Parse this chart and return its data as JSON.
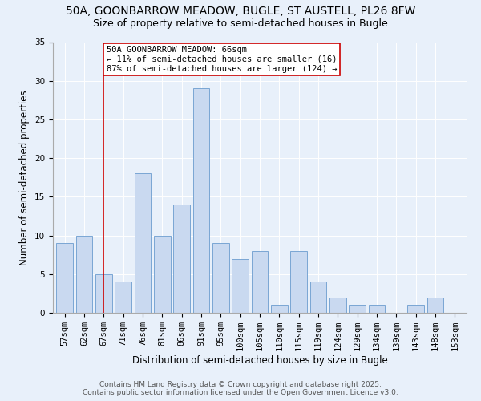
{
  "title": "50A, GOONBARROW MEADOW, BUGLE, ST AUSTELL, PL26 8FW",
  "subtitle": "Size of property relative to semi-detached houses in Bugle",
  "xlabel": "Distribution of semi-detached houses by size in Bugle",
  "ylabel": "Number of semi-detached properties",
  "categories": [
    "57sqm",
    "62sqm",
    "67sqm",
    "71sqm",
    "76sqm",
    "81sqm",
    "86sqm",
    "91sqm",
    "95sqm",
    "100sqm",
    "105sqm",
    "110sqm",
    "115sqm",
    "119sqm",
    "124sqm",
    "129sqm",
    "134sqm",
    "139sqm",
    "143sqm",
    "148sqm",
    "153sqm"
  ],
  "values": [
    9,
    10,
    5,
    4,
    18,
    10,
    14,
    29,
    9,
    7,
    8,
    1,
    8,
    4,
    2,
    1,
    1,
    0,
    1,
    2,
    0
  ],
  "bar_color": "#c9d9f0",
  "bar_edge_color": "#7aa6d4",
  "vline_x": 2,
  "vline_color": "#cc0000",
  "annotation_text": "50A GOONBARROW MEADOW: 66sqm\n← 11% of semi-detached houses are smaller (16)\n87% of semi-detached houses are larger (124) →",
  "annotation_box_color": "#ffffff",
  "annotation_box_edge": "#cc0000",
  "ylim": [
    0,
    35
  ],
  "yticks": [
    0,
    5,
    10,
    15,
    20,
    25,
    30,
    35
  ],
  "footer1": "Contains HM Land Registry data © Crown copyright and database right 2025.",
  "footer2": "Contains public sector information licensed under the Open Government Licence v3.0.",
  "background_color": "#e8f0fa",
  "plot_bg_color": "#e8f0fa",
  "title_fontsize": 10,
  "subtitle_fontsize": 9,
  "axis_label_fontsize": 8.5,
  "tick_fontsize": 7.5,
  "annotation_fontsize": 7.5,
  "footer_fontsize": 6.5
}
